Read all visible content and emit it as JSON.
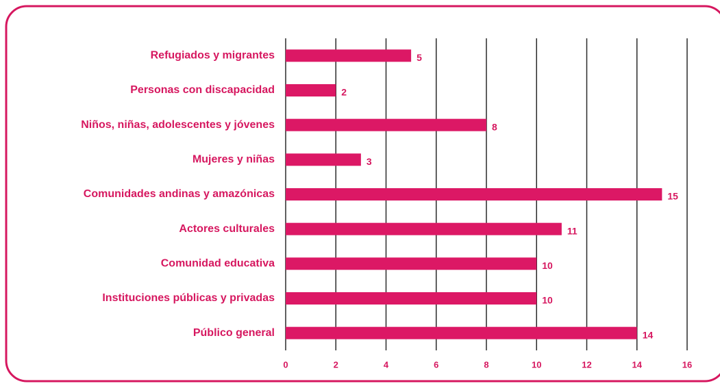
{
  "chart_data": {
    "type": "bar",
    "orientation": "horizontal",
    "categories": [
      "Refugiados y migrantes",
      "Personas con discapacidad",
      "Niños, niñas, adolescentes y jóvenes",
      "Mujeres y niñas",
      "Comunidades andinas y amazónicas",
      "Actores culturales",
      "Comunidad educativa",
      "Instituciones públicas y privadas",
      "Público general"
    ],
    "values": [
      5,
      2,
      8,
      3,
      15,
      11,
      10,
      10,
      14
    ],
    "color": "#dc1865",
    "xlim": [
      0,
      16
    ],
    "xticks": [
      0,
      2,
      4,
      6,
      8,
      10,
      12,
      14,
      16
    ],
    "grid": true
  }
}
